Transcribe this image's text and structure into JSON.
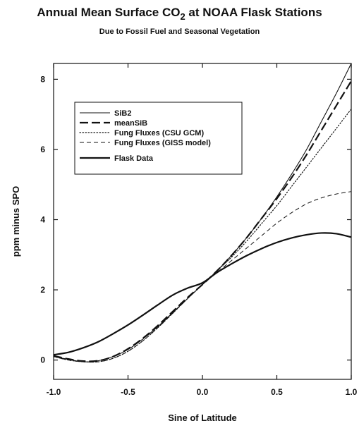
{
  "chart_data": {
    "type": "line",
    "title_main": "Annual Mean Surface CO",
    "title_sub": "2",
    "title_tail": " at NOAA Flask Stations",
    "subtitle": "Due to Fossil Fuel and Seasonal Vegetation",
    "xlabel": "Sine of Latitude",
    "ylabel": "ppm minus SPO",
    "xlim": [
      -1.0,
      1.0
    ],
    "ylim": [
      -0.55,
      8.45
    ],
    "xticks": [
      -1.0,
      -0.5,
      0.0,
      0.5,
      1.0
    ],
    "xtick_labels": [
      "-1.0",
      "-0.5",
      "0.0",
      "0.5",
      "1.0"
    ],
    "yticks": [
      0,
      2,
      4,
      6,
      8
    ],
    "ytick_labels": [
      "0",
      "2",
      "4",
      "6",
      "8"
    ],
    "grid": false,
    "legend_position": "upper-left",
    "series": [
      {
        "name": "SiB2",
        "style": "solid-thin",
        "x": [
          -1.0,
          -0.9,
          -0.8,
          -0.7,
          -0.6,
          -0.5,
          -0.4,
          -0.3,
          -0.2,
          -0.1,
          0.0,
          0.1,
          0.2,
          0.3,
          0.4,
          0.5,
          0.6,
          0.7,
          0.8,
          0.9,
          1.0
        ],
        "y": [
          0.1,
          0.02,
          -0.05,
          -0.02,
          0.1,
          0.3,
          0.6,
          0.95,
          1.35,
          1.75,
          2.15,
          2.55,
          3.0,
          3.5,
          4.05,
          4.65,
          5.3,
          6.0,
          6.8,
          7.6,
          8.45
        ]
      },
      {
        "name": "meanSiB",
        "style": "long-dash",
        "x": [
          -1.0,
          -0.9,
          -0.8,
          -0.7,
          -0.6,
          -0.5,
          -0.4,
          -0.3,
          -0.2,
          -0.1,
          0.0,
          0.1,
          0.2,
          0.3,
          0.4,
          0.5,
          0.6,
          0.7,
          0.8,
          0.9,
          1.0
        ],
        "y": [
          0.12,
          0.03,
          -0.03,
          -0.02,
          0.1,
          0.32,
          0.62,
          0.98,
          1.38,
          1.78,
          2.15,
          2.55,
          3.0,
          3.5,
          4.05,
          4.6,
          5.2,
          5.85,
          6.55,
          7.25,
          7.95
        ]
      },
      {
        "name": "Fung Fluxes (CSU GCM)",
        "style": "dotted",
        "x": [
          -1.0,
          -0.9,
          -0.8,
          -0.7,
          -0.6,
          -0.5,
          -0.4,
          -0.3,
          -0.2,
          -0.1,
          0.0,
          0.1,
          0.2,
          0.3,
          0.4,
          0.5,
          0.6,
          0.7,
          0.8,
          0.9,
          1.0
        ],
        "y": [
          0.1,
          0.0,
          -0.05,
          -0.05,
          0.05,
          0.25,
          0.55,
          0.92,
          1.33,
          1.75,
          2.15,
          2.55,
          2.95,
          3.4,
          3.9,
          4.4,
          4.95,
          5.5,
          6.05,
          6.6,
          7.15
        ]
      },
      {
        "name": "Fung Fluxes (GISS model)",
        "style": "short-dash",
        "x": [
          -1.0,
          -0.9,
          -0.8,
          -0.7,
          -0.6,
          -0.5,
          -0.4,
          -0.3,
          -0.2,
          -0.1,
          0.0,
          0.1,
          0.2,
          0.3,
          0.4,
          0.5,
          0.6,
          0.7,
          0.8,
          0.9,
          1.0
        ],
        "y": [
          0.1,
          0.0,
          -0.05,
          -0.05,
          0.05,
          0.25,
          0.55,
          0.92,
          1.33,
          1.75,
          2.15,
          2.5,
          2.85,
          3.2,
          3.55,
          3.9,
          4.2,
          4.45,
          4.62,
          4.73,
          4.8
        ]
      },
      {
        "name": "Flask Data",
        "style": "solid-thick",
        "x": [
          -1.0,
          -0.9,
          -0.8,
          -0.7,
          -0.6,
          -0.5,
          -0.4,
          -0.3,
          -0.2,
          -0.1,
          0.0,
          0.1,
          0.2,
          0.3,
          0.4,
          0.5,
          0.6,
          0.7,
          0.8,
          0.9,
          1.0
        ],
        "y": [
          0.15,
          0.22,
          0.35,
          0.52,
          0.75,
          1.0,
          1.28,
          1.57,
          1.85,
          2.05,
          2.2,
          2.5,
          2.75,
          2.98,
          3.18,
          3.35,
          3.48,
          3.57,
          3.62,
          3.6,
          3.5
        ]
      }
    ]
  }
}
